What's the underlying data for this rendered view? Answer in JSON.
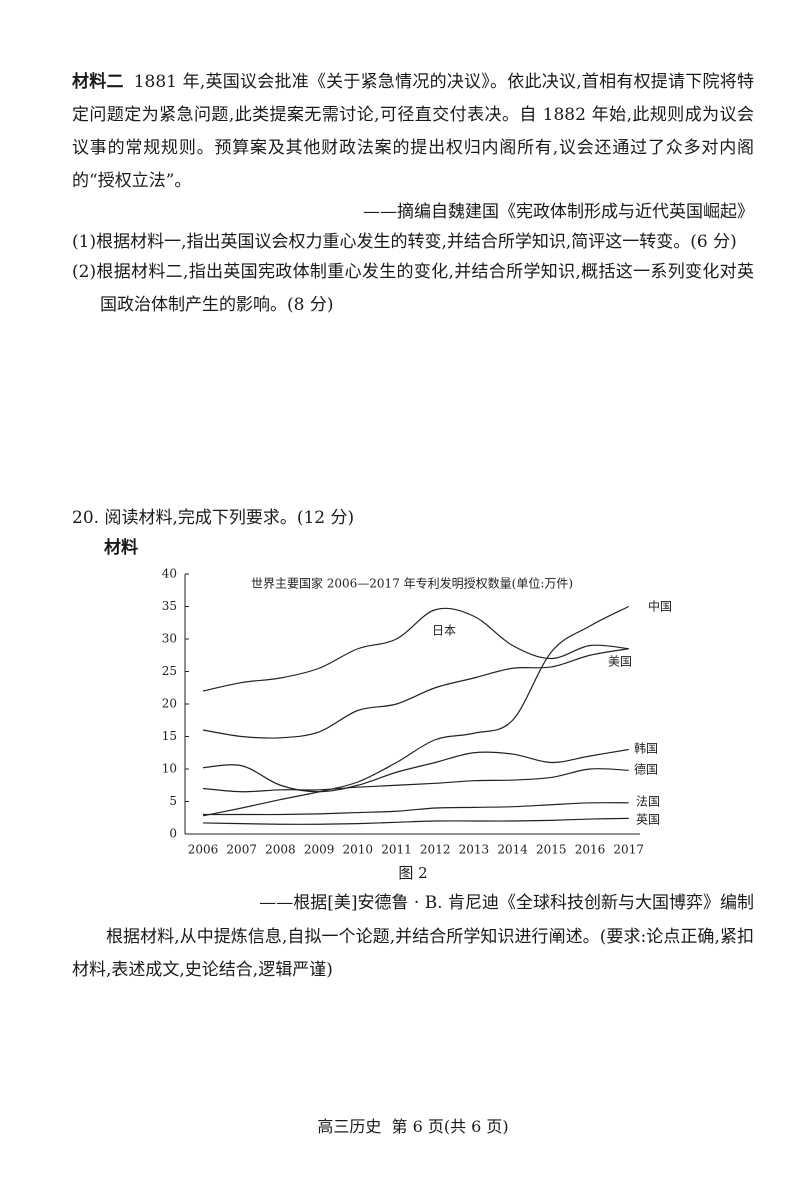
{
  "material2": {
    "label": "材料二",
    "text": "1881 年,英国议会批准《关于紧急情况的决议》。依此决议,首相有权提请下院将特定问题定为紧急问题,此类提案无需讨论,可径直交付表决。自 1882 年始,此规则成为议会议事的常规规则。预算案及其他财政法案的提出权归内阁所有,议会还通过了众多对内阁的“授权立法”。",
    "source": "——摘编自魏建国《宪政体制形成与近代英国崛起》"
  },
  "questions": [
    "(1)根据材料一,指出英国议会权力重心发生的转变,并结合所学知识,简评这一转变。(6 分)",
    "(2)根据材料二,指出英国宪政体制重心发生的变化,并结合所学知识,概括这一系列变化对英国政治体制产生的影响。(8 分)"
  ],
  "q20": {
    "heading": "20. 阅读材料,完成下列要求。(12 分)",
    "material_label": "材料",
    "figure_caption": "图 2",
    "source": "——根据[美]安德鲁 · B. 肯尼迪《全球科技创新与大国博弈》编制",
    "prompt": "根据材料,从中提炼信息,自拟一个论题,并结合所学知识进行阐述。(要求:论点正确,紧扣材料,表述成文,史论结合,逻辑严谨)"
  },
  "chart_data": {
    "type": "line",
    "title": "世界主要国家 2006—2017 年专利发明授权数量(单位:万件)",
    "categories": [
      "2006",
      "2007",
      "2008",
      "2009",
      "2010",
      "2011",
      "2012",
      "2013",
      "2014",
      "2015",
      "2016",
      "2017"
    ],
    "ylim": [
      0,
      40
    ],
    "yticks": [
      0,
      5,
      10,
      15,
      20,
      25,
      30,
      35,
      40
    ],
    "series": [
      {
        "name": "中国",
        "color": "#222222",
        "values": [
          2.8,
          4,
          5.3,
          6.5,
          8,
          11,
          14.5,
          15.5,
          17.5,
          28,
          32,
          35
        ]
      },
      {
        "name": "日本",
        "color": "#222222",
        "values": [
          22,
          23.3,
          24,
          25.5,
          28.5,
          30,
          34.5,
          33.5,
          29,
          27,
          29,
          28.5
        ]
      },
      {
        "name": "美国",
        "color": "#222222",
        "values": [
          16,
          15,
          14.8,
          15.7,
          19,
          20,
          22.5,
          24,
          25.5,
          25.7,
          27.5,
          28.5
        ]
      },
      {
        "name": "韩国",
        "color": "#222222",
        "values": [
          10.2,
          10.5,
          7.5,
          6.5,
          7.5,
          9.5,
          11,
          12.5,
          12.3,
          11,
          12,
          13
        ]
      },
      {
        "name": "德国",
        "color": "#222222",
        "values": [
          7,
          6.5,
          6.8,
          6.8,
          7.2,
          7.5,
          7.8,
          8.2,
          8.3,
          8.7,
          10,
          9.8
        ]
      },
      {
        "name": "法国",
        "color": "#222222",
        "values": [
          3,
          3,
          3,
          3.1,
          3.3,
          3.5,
          4,
          4.1,
          4.2,
          4.5,
          4.8,
          4.8
        ]
      },
      {
        "name": "英国",
        "color": "#222222",
        "values": [
          1.7,
          1.6,
          1.5,
          1.5,
          1.6,
          1.8,
          2,
          2,
          2,
          2.1,
          2.3,
          2.4
        ]
      }
    ]
  },
  "footer": "高三历史  第 6 页(共 6 页)"
}
